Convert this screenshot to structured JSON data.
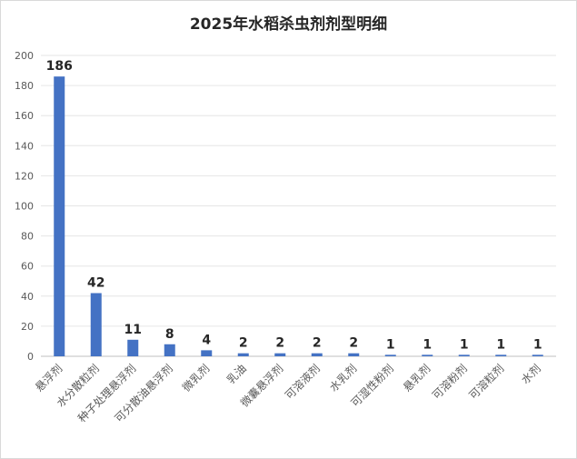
{
  "chart_data": {
    "type": "bar",
    "title": "2025年水稻杀虫剂剂型明细",
    "categories": [
      "悬浮剂",
      "水分散粒剂",
      "种子处理悬浮剂",
      "可分散油悬浮剂",
      "微乳剂",
      "乳油",
      "微囊悬浮剂",
      "可溶液剂",
      "水乳剂",
      "可湿性粉剂",
      "悬乳剂",
      "可溶粉剂",
      "可溶粒剂",
      "水剂"
    ],
    "values": [
      186,
      42,
      11,
      8,
      4,
      2,
      2,
      2,
      2,
      1,
      1,
      1,
      1,
      1
    ],
    "ylim": [
      0,
      200
    ],
    "yticks": [
      0,
      20,
      40,
      60,
      80,
      100,
      120,
      140,
      160,
      180,
      200
    ],
    "grid": true,
    "bar_color": "#4472c4"
  }
}
